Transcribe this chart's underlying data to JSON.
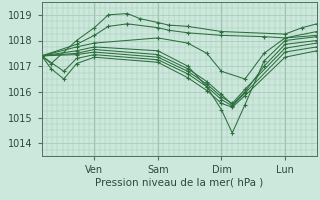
{
  "title": "Pression niveau de la mer( hPa )",
  "ylabel_ticks": [
    1014,
    1015,
    1016,
    1017,
    1018,
    1019
  ],
  "xlim": [
    0,
    4.33
  ],
  "ylim": [
    1013.5,
    1019.5
  ],
  "bg_color": "#cce8dc",
  "plot_bg_color": "#cce8dc",
  "grid_color": "#aaccbb",
  "line_color": "#2d6e3e",
  "x_ticks": [
    0.83,
    1.83,
    2.83,
    3.83
  ],
  "x_labels": [
    "Ven",
    "Sam",
    "Dim",
    "Lun"
  ],
  "lines": [
    {
      "x": [
        0.0,
        0.15,
        0.55,
        0.83,
        1.05,
        1.35,
        1.55,
        1.83,
        2.0,
        2.3,
        2.83,
        3.83,
        4.1,
        4.33
      ],
      "y": [
        1017.4,
        1017.1,
        1018.0,
        1018.5,
        1019.0,
        1019.05,
        1018.85,
        1018.7,
        1018.6,
        1018.55,
        1018.35,
        1018.25,
        1018.5,
        1018.65
      ]
    },
    {
      "x": [
        0.0,
        0.55,
        0.83,
        1.05,
        1.35,
        1.83,
        2.0,
        2.3,
        2.83,
        3.5,
        3.83,
        4.33
      ],
      "y": [
        1017.4,
        1017.85,
        1018.2,
        1018.55,
        1018.65,
        1018.5,
        1018.4,
        1018.3,
        1018.2,
        1018.15,
        1018.1,
        1018.35
      ]
    },
    {
      "x": [
        0.0,
        0.55,
        0.83,
        1.83,
        2.3,
        2.6,
        2.83,
        3.2,
        3.5,
        3.83,
        4.33
      ],
      "y": [
        1017.4,
        1017.75,
        1017.9,
        1018.1,
        1017.9,
        1017.5,
        1016.8,
        1016.5,
        1017.5,
        1018.1,
        1018.2
      ]
    },
    {
      "x": [
        0.0,
        0.55,
        0.83,
        1.83,
        2.3,
        2.6,
        2.83,
        3.0,
        3.2,
        3.5,
        3.83,
        4.33
      ],
      "y": [
        1017.4,
        1017.6,
        1017.75,
        1017.6,
        1017.0,
        1016.2,
        1015.3,
        1014.4,
        1015.5,
        1017.2,
        1018.0,
        1018.15
      ]
    },
    {
      "x": [
        0.0,
        0.55,
        0.83,
        1.83,
        2.3,
        2.6,
        2.83,
        3.0,
        3.2,
        3.5,
        3.83,
        4.33
      ],
      "y": [
        1017.4,
        1017.5,
        1017.65,
        1017.45,
        1016.9,
        1016.4,
        1015.9,
        1015.5,
        1016.0,
        1017.0,
        1017.85,
        1018.0
      ]
    },
    {
      "x": [
        0.0,
        0.55,
        0.83,
        1.83,
        2.3,
        2.6,
        2.83,
        3.0,
        3.2,
        3.83,
        4.33
      ],
      "y": [
        1017.4,
        1017.45,
        1017.55,
        1017.35,
        1016.8,
        1016.3,
        1015.8,
        1015.55,
        1016.1,
        1017.7,
        1017.9
      ]
    },
    {
      "x": [
        0.0,
        0.35,
        0.55,
        0.83,
        1.83,
        2.3,
        2.6,
        2.83,
        3.0,
        3.2,
        3.83,
        4.33
      ],
      "y": [
        1017.4,
        1016.8,
        1017.3,
        1017.45,
        1017.25,
        1016.7,
        1016.2,
        1015.7,
        1015.45,
        1015.95,
        1017.55,
        1017.75
      ]
    },
    {
      "x": [
        0.0,
        0.15,
        0.35,
        0.55,
        0.83,
        1.83,
        2.3,
        2.6,
        2.83,
        3.0,
        3.2,
        3.83,
        4.33
      ],
      "y": [
        1017.4,
        1016.9,
        1016.5,
        1017.1,
        1017.35,
        1017.15,
        1016.55,
        1016.05,
        1015.55,
        1015.4,
        1015.85,
        1017.35,
        1017.6
      ]
    }
  ]
}
